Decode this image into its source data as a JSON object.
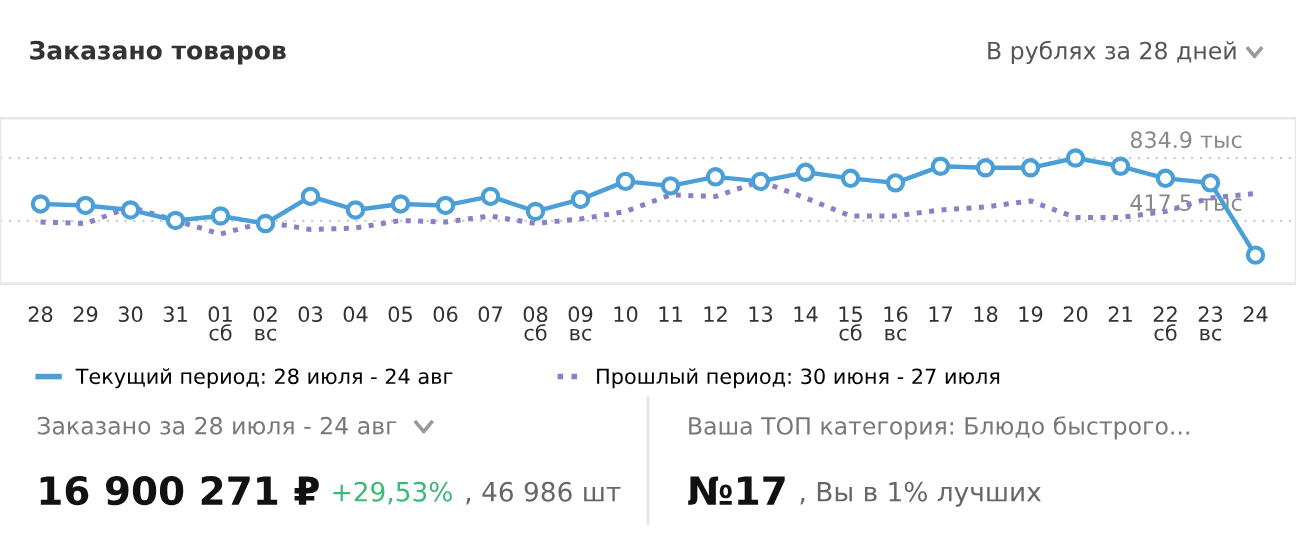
{
  "chart_data": {
    "type": "line",
    "title": "Заказано товаров",
    "subtitle": "В рублях за 28 дней",
    "categories": [
      "28",
      "29",
      "30",
      "31",
      "01\nсб",
      "02\nвс",
      "03",
      "04",
      "05",
      "06",
      "07",
      "08\nсб",
      "09\nвс",
      "10",
      "11",
      "12",
      "13",
      "14",
      "15\nсб",
      "16\nвс",
      "17",
      "18",
      "19",
      "20",
      "21",
      "22\nсб",
      "23\nвс",
      "24"
    ],
    "series": [
      {
        "name": "Текущий период: 28 июля - 24 авг",
        "color": "#4a9fd8",
        "marker": "circle",
        "line_style": "solid",
        "values": [
          530,
          520,
          490,
          420,
          450,
          400,
          580,
          490,
          530,
          520,
          580,
          480,
          560,
          680,
          650,
          710,
          680,
          740,
          700,
          670,
          780,
          770,
          770,
          835,
          780,
          700,
          670,
          190
        ]
      },
      {
        "name": "Прошлый период: 30 июня - 27 июля",
        "color": "#8b7fc7",
        "marker": "none",
        "line_style": "dotted",
        "values": [
          410,
          400,
          510,
          420,
          330,
          410,
          360,
          370,
          420,
          410,
          450,
          400,
          430,
          480,
          590,
          580,
          680,
          570,
          450,
          450,
          490,
          510,
          550,
          440,
          440,
          480,
          570,
          600
        ]
      }
    ],
    "ylim": [
      0,
      1100
    ],
    "yticks": [
      {
        "value": 834.9,
        "label": "834.9 тыс"
      },
      {
        "value": 417.5,
        "label": "417.5 тыс"
      }
    ],
    "grid": "y",
    "legend": "bottom",
    "annotations": [
      "Заказано за 28 июля - 24 авг",
      "16 900 271 ₽",
      "+29,53%",
      ", 46 986 шт",
      "Ваша ТОП категория: Блюдо быстрого...",
      "№17",
      ", Вы в 1% лучших"
    ]
  }
}
